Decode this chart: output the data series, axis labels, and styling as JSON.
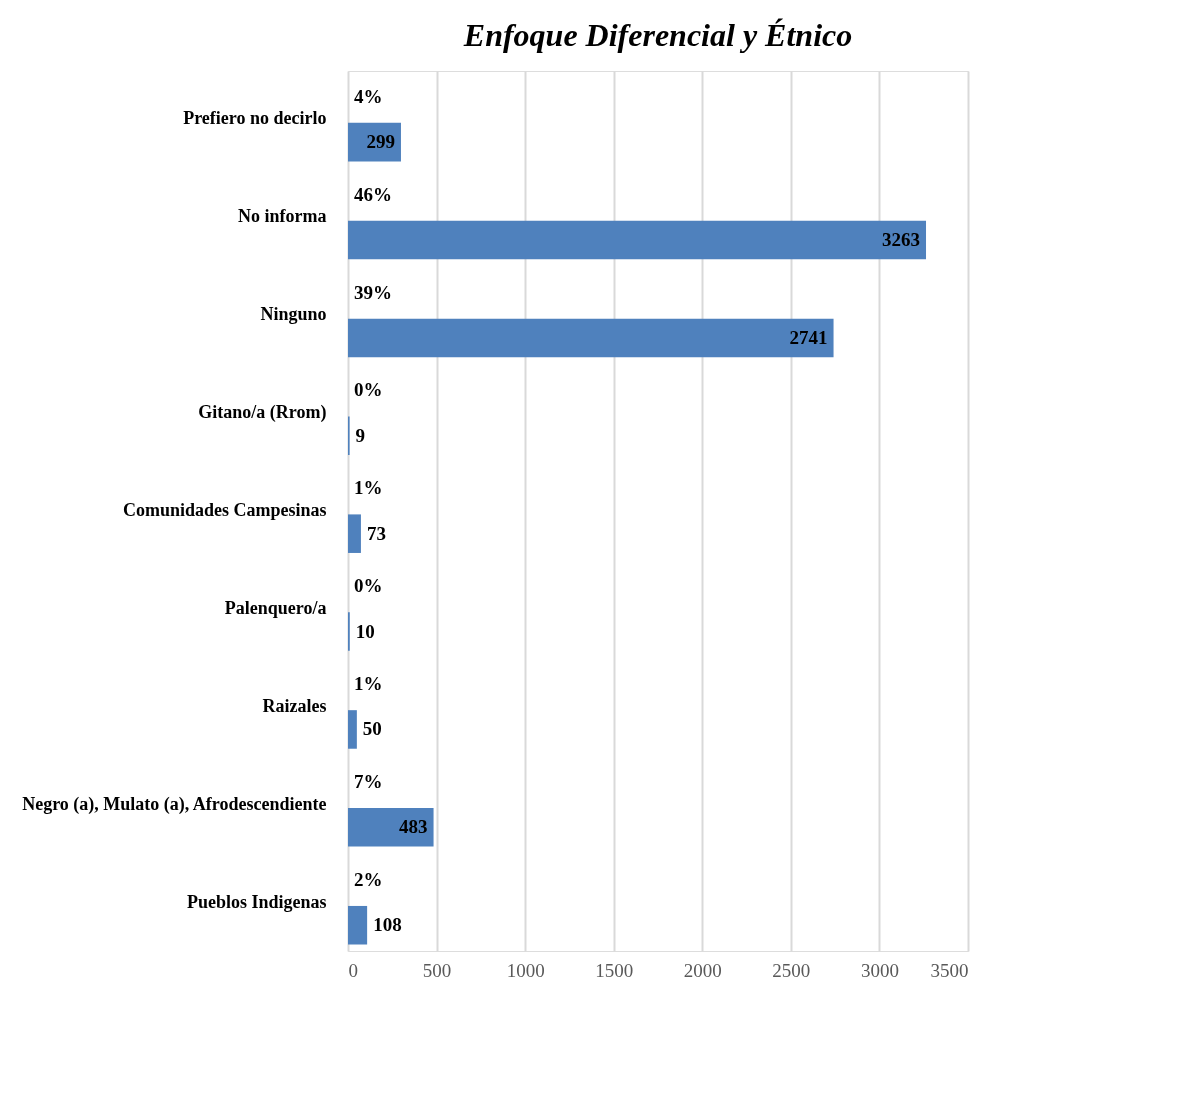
{
  "chart_data": {
    "type": "bar",
    "orientation": "horizontal",
    "title": "Enfoque Diferencial y Étnico",
    "categories": [
      "Prefiero no decirlo",
      "No informa",
      "Ninguno",
      "Gitano/a (Rrom)",
      "Comunidades Campesinas",
      "Palenquero/a",
      "Raizales",
      "Negro (a), Mulato (a), Afrodescendiente",
      "Pueblos Indigenas"
    ],
    "series": [
      {
        "color": "#4f81bd",
        "values": [
          299,
          3263,
          2741,
          9,
          73,
          10,
          50,
          483,
          108
        ]
      }
    ],
    "data_labels": true,
    "annotations": [
      "4%",
      "46%",
      "39%",
      "0%",
      "1%",
      "0%",
      "1%",
      "7%",
      "2%"
    ],
    "xlim": [
      0,
      3500
    ],
    "xticks": [
      0,
      500,
      1000,
      1500,
      2000,
      2500,
      3000,
      3500
    ],
    "grid": "x",
    "legend": false
  }
}
